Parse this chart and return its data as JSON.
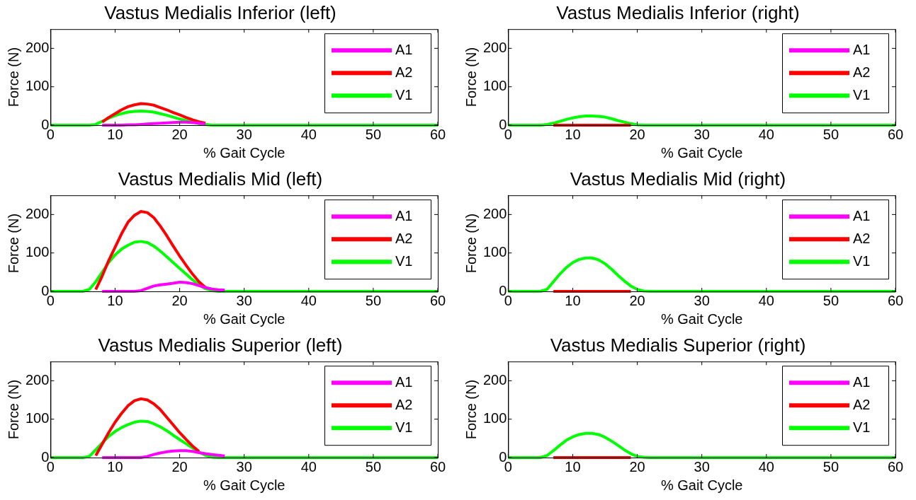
{
  "chart_data": [
    {
      "type": "line",
      "title": "Vastus Medialis Inferior (left)",
      "xlabel": "% Gait Cycle",
      "ylabel": "Force (N)",
      "x": [
        0,
        1,
        2,
        3,
        4,
        5,
        6,
        7,
        8,
        9,
        10,
        11,
        12,
        13,
        14,
        15,
        16,
        17,
        18,
        19,
        20,
        21,
        22,
        23,
        24,
        25,
        26,
        27,
        28,
        29,
        30,
        40,
        50,
        60
      ],
      "xlim": [
        0,
        60
      ],
      "xticks": [
        0,
        10,
        20,
        30,
        40,
        50,
        60
      ],
      "ylim": [
        0,
        250
      ],
      "yticks": [
        0,
        100,
        200
      ],
      "grid": false,
      "legend": "top right",
      "marker": "none",
      "series": [
        {
          "name": "A1",
          "color": "#ff00ff",
          "values": [
            null,
            null,
            null,
            null,
            null,
            null,
            null,
            null,
            0,
            0,
            0,
            0,
            1,
            1,
            2,
            3,
            4,
            5,
            6,
            7,
            8,
            8,
            7,
            5,
            3,
            null,
            null,
            null,
            null,
            null,
            null,
            null,
            null,
            null
          ]
        },
        {
          "name": "A2",
          "color": "#ff0000",
          "values": [
            null,
            null,
            null,
            null,
            null,
            null,
            null,
            null,
            8,
            20,
            30,
            40,
            48,
            53,
            56,
            55,
            52,
            46,
            40,
            33,
            27,
            20,
            14,
            9,
            5,
            null,
            null,
            null,
            null,
            null,
            null,
            null,
            null,
            null
          ]
        },
        {
          "name": "V1",
          "color": "#00ff00",
          "values": [
            0,
            0,
            0,
            0,
            0,
            0,
            0,
            2,
            10,
            18,
            25,
            30,
            34,
            36,
            37,
            36,
            34,
            30,
            26,
            21,
            16,
            12,
            8,
            4,
            2,
            0,
            0,
            0,
            0,
            0,
            0,
            0,
            0,
            0
          ]
        }
      ]
    },
    {
      "type": "line",
      "title": "Vastus Medialis Inferior (right)",
      "xlabel": "% Gait Cycle",
      "ylabel": "Force (N)",
      "x": [
        0,
        1,
        2,
        3,
        4,
        5,
        6,
        7,
        8,
        9,
        10,
        11,
        12,
        13,
        14,
        15,
        16,
        17,
        18,
        19,
        20,
        21,
        22,
        23,
        24,
        25,
        26,
        27,
        28,
        29,
        30,
        40,
        50,
        60
      ],
      "xlim": [
        0,
        60
      ],
      "xticks": [
        0,
        10,
        20,
        30,
        40,
        50,
        60
      ],
      "ylim": [
        0,
        250
      ],
      "yticks": [
        0,
        100,
        200
      ],
      "grid": false,
      "legend": "top right",
      "marker": "none",
      "series": [
        {
          "name": "A1",
          "color": "#ff00ff",
          "values": [
            null,
            null,
            null,
            null,
            null,
            null,
            null,
            null,
            null,
            null,
            null,
            null,
            null,
            null,
            null,
            null,
            null,
            null,
            null,
            null,
            null,
            null,
            null,
            null,
            null,
            null,
            null,
            null,
            null,
            null,
            null,
            null,
            null,
            null
          ]
        },
        {
          "name": "A2",
          "color": "#ff0000",
          "values": [
            null,
            null,
            null,
            null,
            null,
            null,
            null,
            0,
            0,
            0,
            0,
            0,
            0,
            0,
            0,
            0,
            0,
            0,
            0,
            0,
            null,
            null,
            null,
            null,
            null,
            null,
            null,
            null,
            null,
            null,
            null,
            null,
            null,
            null
          ]
        },
        {
          "name": "V1",
          "color": "#00ff00",
          "values": [
            0,
            0,
            0,
            0,
            0,
            0,
            2,
            5,
            10,
            15,
            19,
            22,
            24,
            24,
            23,
            21,
            17,
            12,
            8,
            4,
            1,
            0,
            0,
            0,
            0,
            0,
            0,
            0,
            0,
            0,
            0,
            0,
            0,
            0
          ]
        }
      ]
    },
    {
      "type": "line",
      "title": "Vastus Medialis Mid (left)",
      "xlabel": "% Gait Cycle",
      "ylabel": "Force (N)",
      "x": [
        0,
        1,
        2,
        3,
        4,
        5,
        6,
        7,
        8,
        9,
        10,
        11,
        12,
        13,
        14,
        15,
        16,
        17,
        18,
        19,
        20,
        21,
        22,
        23,
        24,
        25,
        26,
        27,
        28,
        29,
        30,
        40,
        50,
        60
      ],
      "xlim": [
        0,
        60
      ],
      "xticks": [
        0,
        10,
        20,
        30,
        40,
        50,
        60
      ],
      "ylim": [
        0,
        250
      ],
      "yticks": [
        0,
        100,
        200
      ],
      "grid": false,
      "legend": "top right",
      "marker": "none",
      "series": [
        {
          "name": "A1",
          "color": "#ff00ff",
          "values": [
            null,
            null,
            null,
            null,
            null,
            null,
            null,
            null,
            0,
            0,
            0,
            0,
            0,
            0,
            2,
            8,
            14,
            17,
            19,
            21,
            24,
            23,
            20,
            15,
            10,
            6,
            4,
            3,
            null,
            null,
            null,
            null,
            null,
            null
          ]
        },
        {
          "name": "A2",
          "color": "#ff0000",
          "values": [
            null,
            null,
            null,
            null,
            null,
            null,
            null,
            5,
            40,
            80,
            115,
            150,
            180,
            198,
            208,
            205,
            192,
            170,
            145,
            118,
            92,
            68,
            45,
            25,
            10,
            null,
            null,
            null,
            null,
            null,
            null,
            null,
            null,
            null
          ]
        },
        {
          "name": "V1",
          "color": "#00ff00",
          "values": [
            0,
            0,
            0,
            0,
            0,
            0,
            5,
            25,
            50,
            75,
            95,
            110,
            120,
            128,
            130,
            127,
            118,
            105,
            90,
            75,
            60,
            45,
            30,
            17,
            7,
            2,
            0,
            0,
            0,
            0,
            0,
            0,
            0,
            0
          ]
        }
      ]
    },
    {
      "type": "line",
      "title": "Vastus Medialis Mid (right)",
      "xlabel": "% Gait Cycle",
      "ylabel": "Force (N)",
      "x": [
        0,
        1,
        2,
        3,
        4,
        5,
        6,
        7,
        8,
        9,
        10,
        11,
        12,
        13,
        14,
        15,
        16,
        17,
        18,
        19,
        20,
        21,
        22,
        23,
        24,
        25,
        26,
        27,
        28,
        29,
        30,
        40,
        50,
        60
      ],
      "xlim": [
        0,
        60
      ],
      "xticks": [
        0,
        10,
        20,
        30,
        40,
        50,
        60
      ],
      "ylim": [
        0,
        250
      ],
      "yticks": [
        0,
        100,
        200
      ],
      "grid": false,
      "legend": "top right",
      "marker": "none",
      "series": [
        {
          "name": "A1",
          "color": "#ff00ff",
          "values": [
            null,
            null,
            null,
            null,
            null,
            null,
            null,
            null,
            null,
            null,
            null,
            null,
            null,
            null,
            null,
            null,
            null,
            null,
            null,
            null,
            null,
            null,
            null,
            null,
            null,
            null,
            null,
            null,
            null,
            null,
            null,
            null,
            null,
            null
          ]
        },
        {
          "name": "A2",
          "color": "#ff0000",
          "values": [
            null,
            null,
            null,
            null,
            null,
            null,
            null,
            0,
            0,
            0,
            0,
            0,
            0,
            0,
            0,
            0,
            0,
            0,
            0,
            0,
            null,
            null,
            null,
            null,
            null,
            null,
            null,
            null,
            null,
            null,
            null,
            null,
            null,
            null
          ]
        },
        {
          "name": "V1",
          "color": "#00ff00",
          "values": [
            0,
            0,
            0,
            0,
            0,
            0,
            5,
            25,
            45,
            62,
            75,
            83,
            87,
            87,
            82,
            72,
            58,
            42,
            27,
            14,
            5,
            1,
            0,
            0,
            0,
            0,
            0,
            0,
            0,
            0,
            0,
            0,
            0,
            0
          ]
        }
      ]
    },
    {
      "type": "line",
      "title": "Vastus Medialis Superior (left)",
      "xlabel": "% Gait Cycle",
      "ylabel": "Force (N)",
      "x": [
        0,
        1,
        2,
        3,
        4,
        5,
        6,
        7,
        8,
        9,
        10,
        11,
        12,
        13,
        14,
        15,
        16,
        17,
        18,
        19,
        20,
        21,
        22,
        23,
        24,
        25,
        26,
        27,
        28,
        29,
        30,
        40,
        50,
        60
      ],
      "xlim": [
        0,
        60
      ],
      "xticks": [
        0,
        10,
        20,
        30,
        40,
        50,
        60
      ],
      "ylim": [
        0,
        250
      ],
      "yticks": [
        0,
        100,
        200
      ],
      "grid": false,
      "legend": "top right",
      "marker": "none",
      "series": [
        {
          "name": "A1",
          "color": "#ff00ff",
          "values": [
            null,
            null,
            null,
            null,
            null,
            null,
            null,
            null,
            0,
            0,
            0,
            0,
            0,
            0,
            0,
            3,
            8,
            12,
            15,
            17,
            18,
            18,
            16,
            13,
            10,
            8,
            6,
            4,
            null,
            null,
            null,
            null,
            null,
            null
          ]
        },
        {
          "name": "A2",
          "color": "#ff0000",
          "values": [
            null,
            null,
            null,
            null,
            null,
            null,
            null,
            5,
            35,
            65,
            92,
            115,
            135,
            148,
            153,
            150,
            140,
            125,
            105,
            85,
            65,
            47,
            30,
            16,
            null,
            null,
            null,
            null,
            null,
            null,
            null,
            null,
            null,
            null
          ]
        },
        {
          "name": "V1",
          "color": "#00ff00",
          "values": [
            0,
            0,
            0,
            0,
            0,
            0,
            3,
            20,
            38,
            55,
            68,
            78,
            86,
            92,
            95,
            94,
            88,
            80,
            70,
            58,
            47,
            36,
            25,
            14,
            6,
            1,
            0,
            0,
            0,
            0,
            0,
            0,
            0,
            0
          ]
        }
      ]
    },
    {
      "type": "line",
      "title": "Vastus Medialis Superior (right)",
      "xlabel": "% Gait Cycle",
      "ylabel": "Force (N)",
      "x": [
        0,
        1,
        2,
        3,
        4,
        5,
        6,
        7,
        8,
        9,
        10,
        11,
        12,
        13,
        14,
        15,
        16,
        17,
        18,
        19,
        20,
        21,
        22,
        23,
        24,
        25,
        26,
        27,
        28,
        29,
        30,
        40,
        50,
        60
      ],
      "xlim": [
        0,
        60
      ],
      "xticks": [
        0,
        10,
        20,
        30,
        40,
        50,
        60
      ],
      "ylim": [
        0,
        250
      ],
      "yticks": [
        0,
        100,
        200
      ],
      "grid": false,
      "legend": "top right",
      "marker": "none",
      "series": [
        {
          "name": "A1",
          "color": "#ff00ff",
          "values": [
            null,
            null,
            null,
            null,
            null,
            null,
            null,
            null,
            null,
            null,
            null,
            null,
            null,
            null,
            null,
            null,
            null,
            null,
            null,
            null,
            null,
            null,
            null,
            null,
            null,
            null,
            null,
            null,
            null,
            null,
            null,
            null,
            null,
            null
          ]
        },
        {
          "name": "A2",
          "color": "#ff0000",
          "values": [
            null,
            null,
            null,
            null,
            null,
            null,
            null,
            0,
            0,
            0,
            0,
            0,
            0,
            0,
            0,
            0,
            0,
            0,
            0,
            0,
            null,
            null,
            null,
            null,
            null,
            null,
            null,
            null,
            null,
            null,
            null,
            null,
            null,
            null
          ]
        },
        {
          "name": "V1",
          "color": "#00ff00",
          "values": [
            0,
            0,
            0,
            0,
            0,
            0,
            5,
            18,
            32,
            45,
            54,
            60,
            63,
            63,
            60,
            53,
            43,
            32,
            20,
            10,
            3,
            1,
            0,
            0,
            0,
            0,
            0,
            0,
            0,
            0,
            0,
            0,
            0,
            0
          ]
        }
      ]
    }
  ]
}
